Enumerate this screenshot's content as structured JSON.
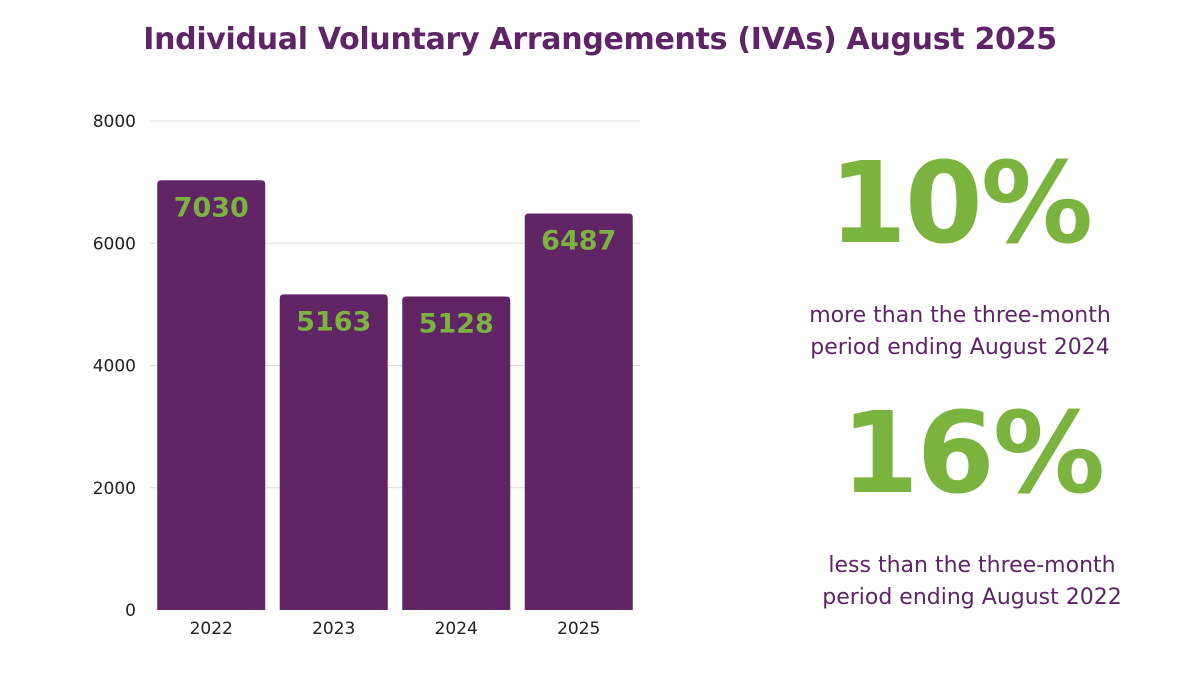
{
  "title": "Individual Voluntary Arrangements (IVAs) August 2025",
  "colors": {
    "bar": "#612566",
    "bar_label": "#7ab33e",
    "title": "#5f2467",
    "accent": "#7ab33e",
    "grid": "#d9d9d9",
    "axis_text": "#222222"
  },
  "chart_data": {
    "type": "bar",
    "categories": [
      "2022",
      "2023",
      "2024",
      "2025"
    ],
    "values": [
      7030,
      5163,
      5128,
      6487
    ],
    "title": "",
    "xlabel": "",
    "ylabel": "",
    "ylim": [
      0,
      8000
    ],
    "yticks": [
      0,
      2000,
      4000,
      6000,
      8000
    ],
    "grid": true,
    "data_labels": true
  },
  "stats": [
    {
      "value": "10%",
      "line1": "more than the three-month",
      "line2": "period ending August 2024"
    },
    {
      "value": "16%",
      "line1": "less than the three-month",
      "line2": "period ending August 2022"
    }
  ]
}
